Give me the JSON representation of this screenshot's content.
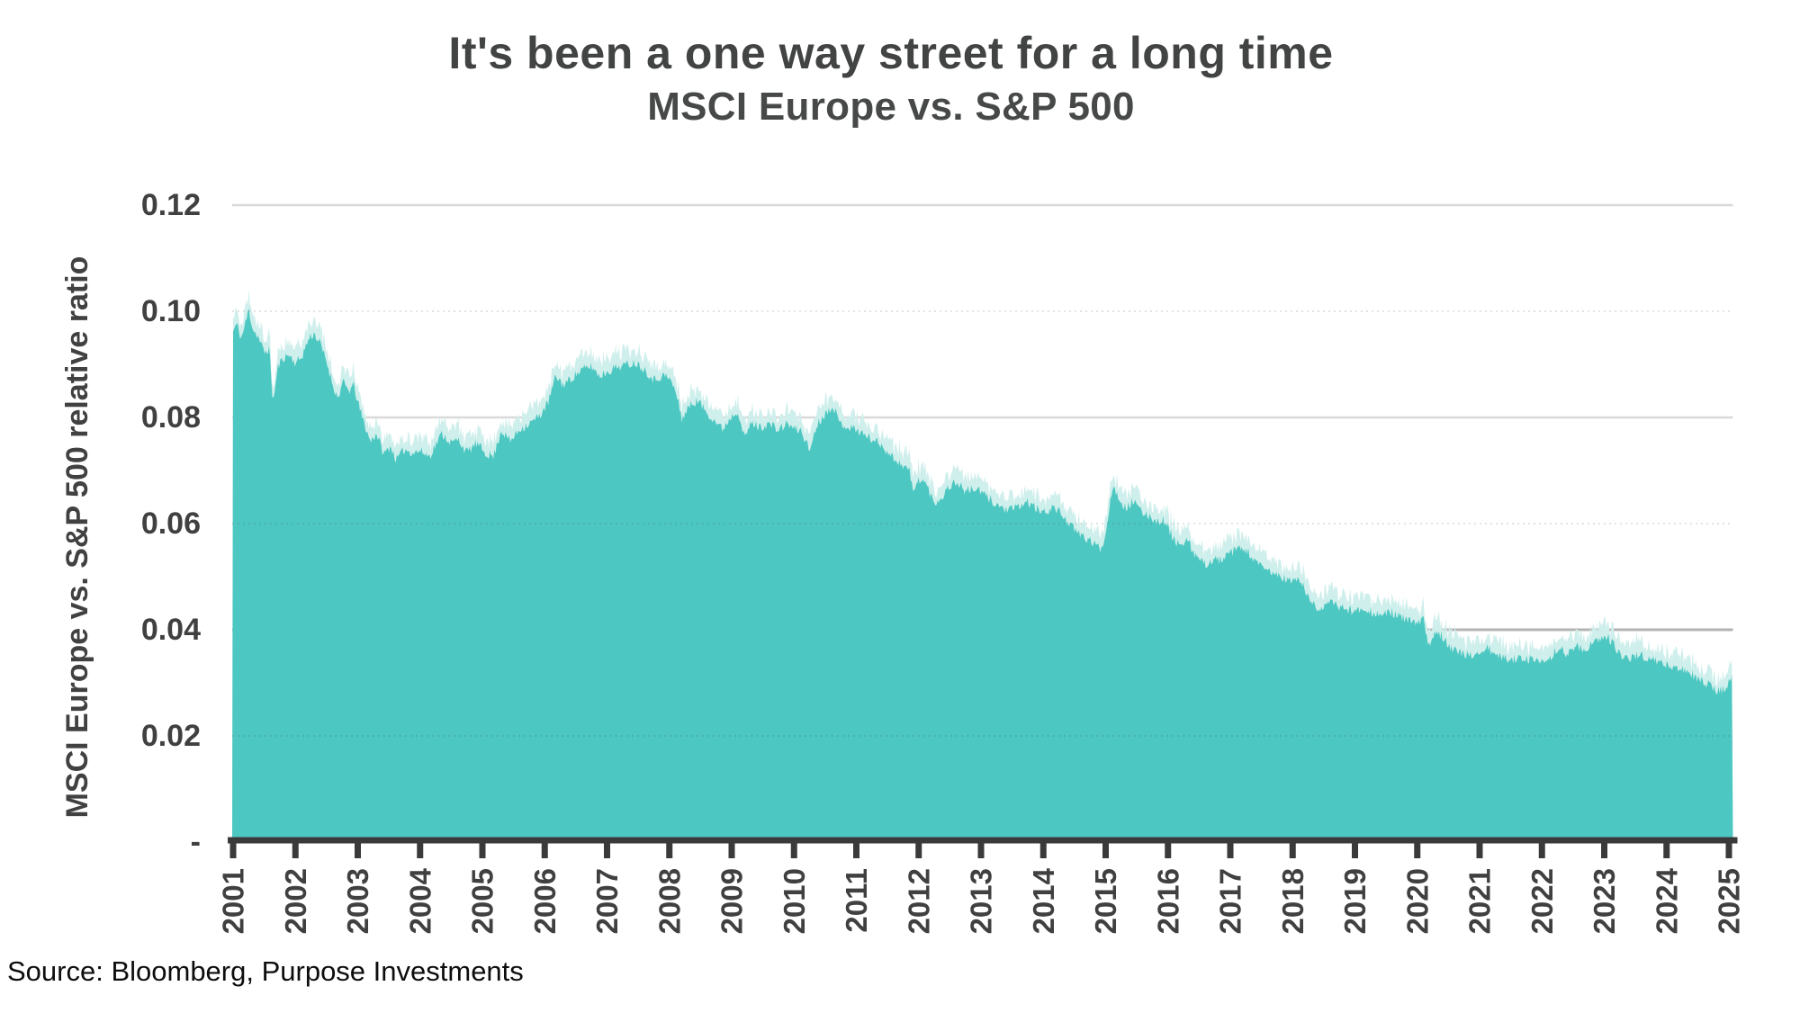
{
  "header": {
    "title": "It's been a one way street for a long time",
    "subtitle": "MSCI Europe vs. S&P 500"
  },
  "footer": {
    "source": "Source: Bloomberg, Purpose Investments"
  },
  "colors": {
    "area_fill": "#4DC7C1",
    "area_fringe": "#CFEFEC",
    "grid_solid": "#D9D9D9",
    "grid_major": "#B3B3B3",
    "grid_dotted_overlay": "rgba(60,60,60,0.14)",
    "axis_line": "#3A3A3A",
    "tick_label": "#404040",
    "title_text": "#424444"
  },
  "chart_data": {
    "type": "area",
    "title": "It's been a one way street for a long time",
    "subtitle": "MSCI Europe vs. S&P 500",
    "xlabel": "",
    "ylabel": "MSCI Europe vs. S&P 500 relative ratio",
    "x_ticks": [
      2001,
      2002,
      2003,
      2004,
      2005,
      2006,
      2007,
      2008,
      2009,
      2010,
      2011,
      2012,
      2013,
      2014,
      2015,
      2016,
      2017,
      2018,
      2019,
      2020,
      2021,
      2022,
      2023,
      2024,
      2025
    ],
    "y_ticks": [
      {
        "value": 0.12,
        "label": "0.12",
        "style": "solid"
      },
      {
        "value": 0.1,
        "label": "0.10",
        "style": "dotted"
      },
      {
        "value": 0.08,
        "label": "0.08",
        "style": "solid"
      },
      {
        "value": 0.06,
        "label": "0.06",
        "style": "dotted"
      },
      {
        "value": 0.04,
        "label": "0.04",
        "style": "major"
      },
      {
        "value": 0.02,
        "label": "0.02",
        "style": "dotted"
      },
      {
        "value": 0.0,
        "label": "-",
        "style": "axis"
      }
    ],
    "ylim": [
      0,
      0.12
    ],
    "xlim": [
      2001,
      2025.06
    ],
    "grid": true,
    "legend": "none",
    "series": [
      {
        "name": "MSCI Europe / S&P 500 ratio",
        "points": [
          [
            2001.0,
            0.0962
          ],
          [
            2001.06,
            0.0976
          ],
          [
            2001.13,
            0.0948
          ],
          [
            2001.2,
            0.0978
          ],
          [
            2001.25,
            0.1003
          ],
          [
            2001.32,
            0.0966
          ],
          [
            2001.4,
            0.0952
          ],
          [
            2001.5,
            0.0922
          ],
          [
            2001.58,
            0.093
          ],
          [
            2001.64,
            0.0827
          ],
          [
            2001.72,
            0.0895
          ],
          [
            2001.8,
            0.0912
          ],
          [
            2001.9,
            0.0918
          ],
          [
            2002.0,
            0.0902
          ],
          [
            2002.1,
            0.0914
          ],
          [
            2002.22,
            0.095
          ],
          [
            2002.3,
            0.0958
          ],
          [
            2002.4,
            0.0938
          ],
          [
            2002.5,
            0.0905
          ],
          [
            2002.6,
            0.0862
          ],
          [
            2002.68,
            0.0835
          ],
          [
            2002.76,
            0.0866
          ],
          [
            2002.86,
            0.085
          ],
          [
            2002.94,
            0.086
          ],
          [
            2003.0,
            0.0828
          ],
          [
            2003.1,
            0.079
          ],
          [
            2003.2,
            0.0755
          ],
          [
            2003.3,
            0.077
          ],
          [
            2003.42,
            0.073
          ],
          [
            2003.52,
            0.0746
          ],
          [
            2003.62,
            0.072
          ],
          [
            2003.75,
            0.074
          ],
          [
            2003.88,
            0.0734
          ],
          [
            2004.0,
            0.0737
          ],
          [
            2004.15,
            0.0727
          ],
          [
            2004.35,
            0.077
          ],
          [
            2004.5,
            0.0752
          ],
          [
            2004.62,
            0.0758
          ],
          [
            2004.75,
            0.0734
          ],
          [
            2004.9,
            0.0751
          ],
          [
            2005.05,
            0.0733
          ],
          [
            2005.18,
            0.0726
          ],
          [
            2005.3,
            0.0776
          ],
          [
            2005.45,
            0.0755
          ],
          [
            2005.6,
            0.0778
          ],
          [
            2005.75,
            0.0788
          ],
          [
            2005.9,
            0.0801
          ],
          [
            2006.05,
            0.0826
          ],
          [
            2006.18,
            0.0878
          ],
          [
            2006.3,
            0.0861
          ],
          [
            2006.45,
            0.0876
          ],
          [
            2006.6,
            0.089
          ],
          [
            2006.75,
            0.0896
          ],
          [
            2006.88,
            0.0878
          ],
          [
            2007.0,
            0.0886
          ],
          [
            2007.15,
            0.0895
          ],
          [
            2007.3,
            0.0899
          ],
          [
            2007.45,
            0.0904
          ],
          [
            2007.6,
            0.0891
          ],
          [
            2007.75,
            0.0871
          ],
          [
            2007.9,
            0.0879
          ],
          [
            2008.0,
            0.0874
          ],
          [
            2008.1,
            0.0849
          ],
          [
            2008.2,
            0.0798
          ],
          [
            2008.32,
            0.0821
          ],
          [
            2008.45,
            0.0832
          ],
          [
            2008.6,
            0.081
          ],
          [
            2008.72,
            0.0795
          ],
          [
            2008.85,
            0.0778
          ],
          [
            2009.0,
            0.0803
          ],
          [
            2009.1,
            0.0814
          ],
          [
            2009.2,
            0.0761
          ],
          [
            2009.32,
            0.079
          ],
          [
            2009.45,
            0.0781
          ],
          [
            2009.6,
            0.0788
          ],
          [
            2009.75,
            0.0776
          ],
          [
            2009.9,
            0.0789
          ],
          [
            2010.0,
            0.0778
          ],
          [
            2010.12,
            0.0775
          ],
          [
            2010.25,
            0.0737
          ],
          [
            2010.35,
            0.0781
          ],
          [
            2010.45,
            0.0801
          ],
          [
            2010.55,
            0.0812
          ],
          [
            2010.62,
            0.0826
          ],
          [
            2010.72,
            0.0791
          ],
          [
            2010.85,
            0.0783
          ],
          [
            2011.0,
            0.0777
          ],
          [
            2011.15,
            0.0766
          ],
          [
            2011.3,
            0.0756
          ],
          [
            2011.45,
            0.0744
          ],
          [
            2011.55,
            0.0728
          ],
          [
            2011.7,
            0.0714
          ],
          [
            2011.85,
            0.0701
          ],
          [
            2011.92,
            0.0656
          ],
          [
            2012.0,
            0.0684
          ],
          [
            2012.1,
            0.0679
          ],
          [
            2012.25,
            0.0638
          ],
          [
            2012.38,
            0.0651
          ],
          [
            2012.5,
            0.0672
          ],
          [
            2012.62,
            0.0678
          ],
          [
            2012.75,
            0.0661
          ],
          [
            2012.9,
            0.0666
          ],
          [
            2013.0,
            0.0659
          ],
          [
            2013.15,
            0.0645
          ],
          [
            2013.3,
            0.0632
          ],
          [
            2013.45,
            0.0625
          ],
          [
            2013.6,
            0.0631
          ],
          [
            2013.75,
            0.0641
          ],
          [
            2013.9,
            0.0627
          ],
          [
            2014.0,
            0.062
          ],
          [
            2014.15,
            0.0631
          ],
          [
            2014.3,
            0.0618
          ],
          [
            2014.5,
            0.0587
          ],
          [
            2014.65,
            0.0575
          ],
          [
            2014.8,
            0.0563
          ],
          [
            2014.92,
            0.0553
          ],
          [
            2015.0,
            0.0576
          ],
          [
            2015.08,
            0.0655
          ],
          [
            2015.14,
            0.0667
          ],
          [
            2015.25,
            0.0641
          ],
          [
            2015.32,
            0.0629
          ],
          [
            2015.45,
            0.0643
          ],
          [
            2015.58,
            0.0619
          ],
          [
            2015.7,
            0.0616
          ],
          [
            2015.82,
            0.0603
          ],
          [
            2015.92,
            0.0607
          ],
          [
            2016.0,
            0.0592
          ],
          [
            2016.1,
            0.0569
          ],
          [
            2016.22,
            0.0558
          ],
          [
            2016.32,
            0.0566
          ],
          [
            2016.45,
            0.0538
          ],
          [
            2016.58,
            0.0523
          ],
          [
            2016.75,
            0.0531
          ],
          [
            2016.9,
            0.0533
          ],
          [
            2017.0,
            0.0544
          ],
          [
            2017.15,
            0.0554
          ],
          [
            2017.3,
            0.0545
          ],
          [
            2017.42,
            0.0524
          ],
          [
            2017.55,
            0.0515
          ],
          [
            2017.7,
            0.0506
          ],
          [
            2017.85,
            0.0497
          ],
          [
            2018.0,
            0.049
          ],
          [
            2018.1,
            0.0498
          ],
          [
            2018.25,
            0.0461
          ],
          [
            2018.4,
            0.0437
          ],
          [
            2018.55,
            0.0452
          ],
          [
            2018.7,
            0.0446
          ],
          [
            2018.85,
            0.044
          ],
          [
            2019.0,
            0.0434
          ],
          [
            2019.15,
            0.0443
          ],
          [
            2019.3,
            0.043
          ],
          [
            2019.45,
            0.0428
          ],
          [
            2019.6,
            0.0433
          ],
          [
            2019.75,
            0.0422
          ],
          [
            2019.9,
            0.0415
          ],
          [
            2020.0,
            0.0412
          ],
          [
            2020.1,
            0.0419
          ],
          [
            2020.18,
            0.0366
          ],
          [
            2020.28,
            0.0398
          ],
          [
            2020.4,
            0.0389
          ],
          [
            2020.55,
            0.0366
          ],
          [
            2020.7,
            0.0355
          ],
          [
            2020.85,
            0.035
          ],
          [
            2021.0,
            0.0358
          ],
          [
            2021.12,
            0.0366
          ],
          [
            2021.25,
            0.0352
          ],
          [
            2021.4,
            0.0346
          ],
          [
            2021.55,
            0.0344
          ],
          [
            2021.7,
            0.0349
          ],
          [
            2021.85,
            0.0342
          ],
          [
            2022.0,
            0.0338
          ],
          [
            2022.08,
            0.0333
          ],
          [
            2022.2,
            0.036
          ],
          [
            2022.3,
            0.0364
          ],
          [
            2022.42,
            0.0354
          ],
          [
            2022.55,
            0.037
          ],
          [
            2022.68,
            0.0361
          ],
          [
            2022.82,
            0.0374
          ],
          [
            2022.95,
            0.0381
          ],
          [
            2023.05,
            0.0389
          ],
          [
            2023.15,
            0.0371
          ],
          [
            2023.3,
            0.0344
          ],
          [
            2023.45,
            0.035
          ],
          [
            2023.57,
            0.0353
          ],
          [
            2023.7,
            0.0347
          ],
          [
            2023.85,
            0.034
          ],
          [
            2024.0,
            0.0333
          ],
          [
            2024.15,
            0.0329
          ],
          [
            2024.3,
            0.0322
          ],
          [
            2024.45,
            0.0313
          ],
          [
            2024.6,
            0.0302
          ],
          [
            2024.75,
            0.029
          ],
          [
            2024.85,
            0.0285
          ],
          [
            2024.95,
            0.0289
          ],
          [
            2025.0,
            0.0297
          ],
          [
            2025.06,
            0.0321
          ]
        ]
      }
    ]
  }
}
